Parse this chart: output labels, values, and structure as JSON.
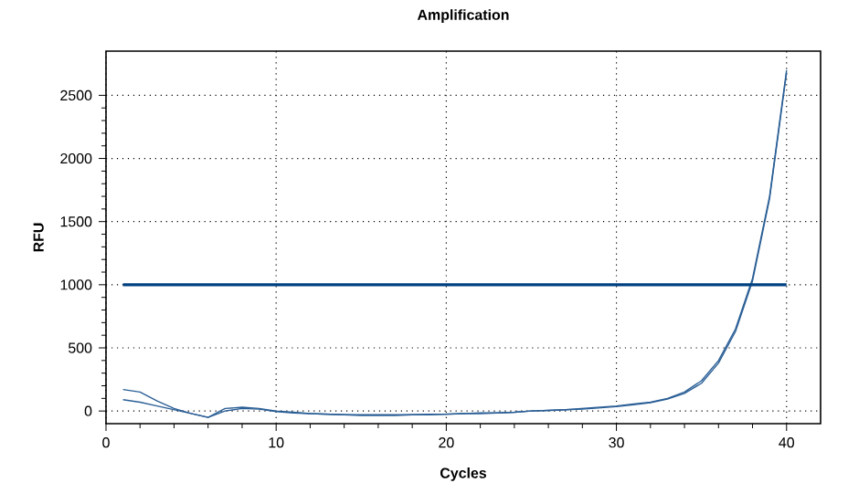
{
  "chart_data": {
    "type": "line",
    "title": "Amplification",
    "xlabel": "Cycles",
    "ylabel": "RFU",
    "x": [
      1,
      2,
      3,
      4,
      5,
      6,
      7,
      8,
      9,
      10,
      11,
      12,
      13,
      14,
      15,
      16,
      17,
      18,
      19,
      20,
      21,
      22,
      23,
      24,
      25,
      26,
      27,
      28,
      29,
      30,
      31,
      32,
      33,
      34,
      35,
      36,
      37,
      38,
      39,
      40
    ],
    "series": [
      {
        "color": "#2b5f96",
        "values": [
          170,
          150,
          80,
          20,
          -20,
          -50,
          20,
          30,
          20,
          0,
          -10,
          -20,
          -25,
          -30,
          -35,
          -35,
          -35,
          -30,
          -30,
          -25,
          -20,
          -20,
          -15,
          -10,
          0,
          5,
          10,
          20,
          30,
          40,
          55,
          70,
          100,
          150,
          240,
          400,
          650,
          1050,
          1700,
          2700
        ]
      },
      {
        "color": "#2b5f96",
        "values": [
          90,
          70,
          40,
          10,
          -20,
          -50,
          0,
          20,
          15,
          -5,
          -15,
          -20,
          -25,
          -30,
          -30,
          -30,
          -30,
          -30,
          -25,
          -25,
          -20,
          -15,
          -15,
          -10,
          0,
          5,
          10,
          15,
          25,
          35,
          50,
          65,
          95,
          140,
          220,
          380,
          630,
          1030,
          1680,
          2680
        ]
      }
    ],
    "ref_lines": [
      {
        "axis": "y",
        "value": 1000,
        "color": "#004080"
      }
    ],
    "xlim": [
      0,
      42
    ],
    "ylim": [
      -100,
      2850
    ],
    "xticks": [
      0,
      10,
      20,
      30,
      40
    ],
    "yticks": [
      0,
      500,
      1000,
      1500,
      2000,
      2500
    ],
    "grid": true,
    "marker": "none",
    "line_style": "solid"
  }
}
